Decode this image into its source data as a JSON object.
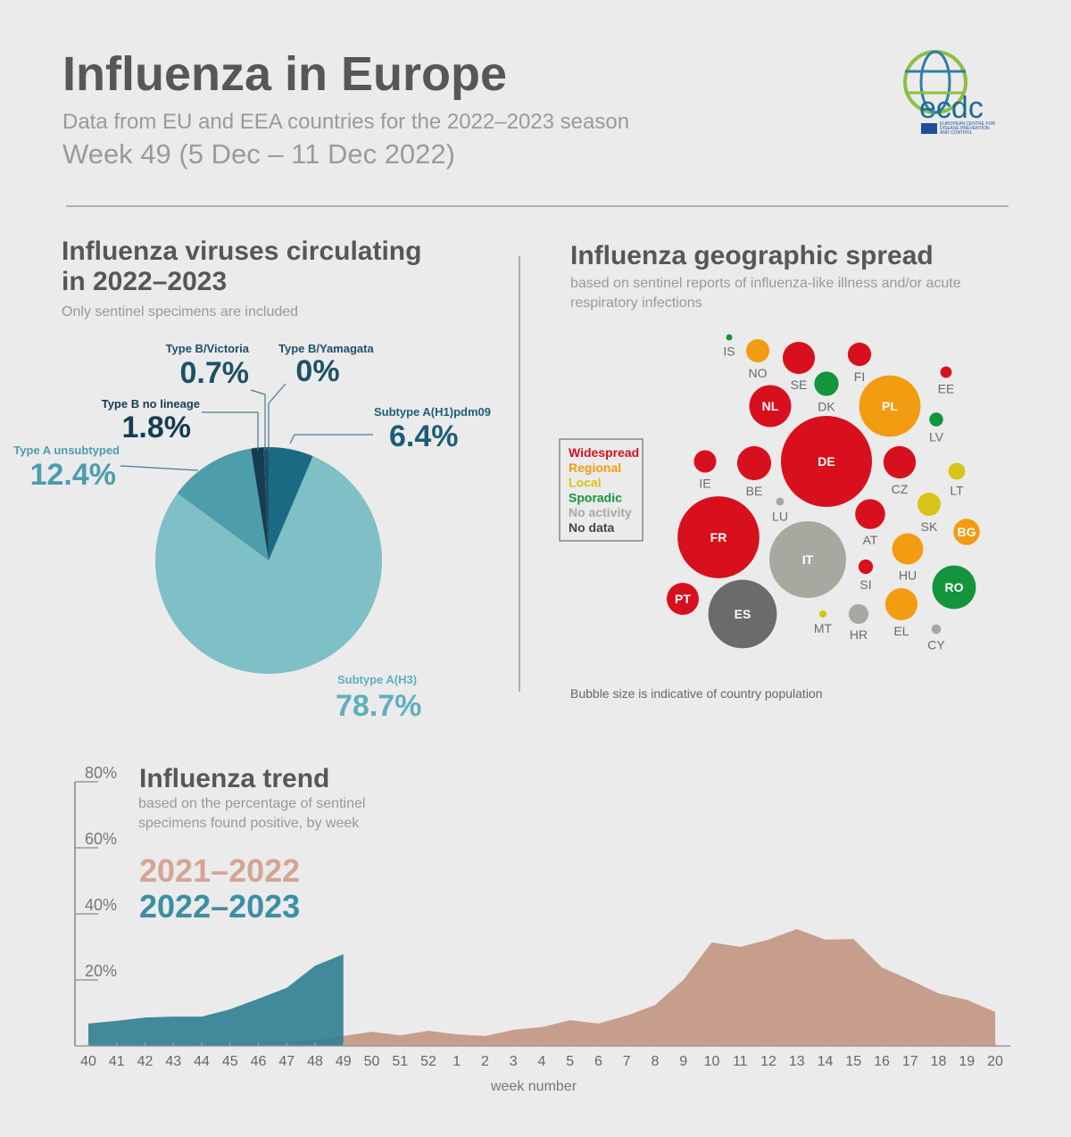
{
  "header": {
    "title": "Influenza in Europe",
    "subtitle": "Data from EU and EEA countries for the 2022–2023 season",
    "week": "Week 49 (5 Dec – 11 Dec 2022)",
    "logo": "ecdc",
    "logo_caption": "EUROPEAN CENTRE FOR DISEASE PREVENTION AND CONTROL"
  },
  "chart_data": [
    {
      "type": "pie",
      "title": "Influenza viruses circulating in 2022–2023",
      "subtitle": "Only sentinel specimens are included",
      "categories": [
        "Subtype A(H1)pdm09",
        "Subtype A(H3)",
        "Type A unsubtyped",
        "Type B no lineage",
        "Type B/Victoria",
        "Type B/Yamagata"
      ],
      "values": [
        6.4,
        78.7,
        12.4,
        1.8,
        0.7,
        0
      ],
      "value_labels": [
        "6.4%",
        "78.7%",
        "12.4%",
        "1.8%",
        "0.7%",
        "0%"
      ],
      "colors": [
        "#1b6a84",
        "#7fbfc6",
        "#4d9dab",
        "#163c52",
        "#1d5068",
        "#2a6d86"
      ]
    },
    {
      "type": "bubble",
      "title": "Influenza geographic spread",
      "subtitle": "based on sentinel reports of influenza-like illness and/or acute respiratory infections",
      "note": "Bubble size is indicative of country population",
      "levels": [
        {
          "name": "Widespread",
          "color": "#d8101e"
        },
        {
          "name": "Regional",
          "color": "#f29c11"
        },
        {
          "name": "Local",
          "color": "#d6c418"
        },
        {
          "name": "Sporadic",
          "color": "#14943c"
        },
        {
          "name": "No activity",
          "color": "#a8a8a0"
        },
        {
          "name": "No data",
          "color": "#6b6b6b"
        }
      ],
      "categories": [
        "IS",
        "NO",
        "SE",
        "FI",
        "DK",
        "EE",
        "NL",
        "PL",
        "LV",
        "DE",
        "IE",
        "BE",
        "CZ",
        "LT",
        "LU",
        "SK",
        "AT",
        "BG",
        "FR",
        "IT",
        "HU",
        "SI",
        "RO",
        "PT",
        "ES",
        "MT",
        "HR",
        "EL",
        "CY"
      ],
      "level": [
        "Sporadic",
        "Regional",
        "Widespread",
        "Widespread",
        "Sporadic",
        "Widespread",
        "Widespread",
        "Regional",
        "Sporadic",
        "Widespread",
        "Widespread",
        "Widespread",
        "Widespread",
        "Local",
        "No activity",
        "Local",
        "Widespread",
        "Regional",
        "Widespread",
        "No activity",
        "Regional",
        "Widespread",
        "Sporadic",
        "Widespread",
        "No data",
        "Local",
        "No activity",
        "Regional",
        "No activity"
      ],
      "sizes": [
        0.38,
        5.4,
        10.4,
        5.5,
        5.9,
        1.3,
        17.6,
        37.8,
        1.9,
        83,
        5,
        11.6,
        10.5,
        2.8,
        0.64,
        5.4,
        9,
        6.9,
        67,
        59,
        9.7,
        2.1,
        19,
        10.3,
        47,
        0.52,
        3.9,
        10.4,
        0.9
      ]
    },
    {
      "type": "area",
      "title": "Influenza trend",
      "subtitle": "based on the percentage of sentinel specimens found positive, by week",
      "x_label": "week number",
      "categories": [
        40,
        41,
        42,
        43,
        44,
        45,
        46,
        47,
        48,
        49,
        50,
        51,
        52,
        1,
        2,
        3,
        4,
        5,
        6,
        7,
        8,
        9,
        10,
        11,
        12,
        13,
        14,
        15,
        16,
        17,
        18,
        19,
        20
      ],
      "series": [
        {
          "name": "2021–2022",
          "color": "#c49a86",
          "values": [
            0.3,
            0.3,
            0.4,
            0.4,
            0.5,
            0.6,
            0.9,
            1.2,
            1.8,
            3,
            4.3,
            3.2,
            4.6,
            3.5,
            3,
            4.9,
            5.7,
            7.8,
            6.8,
            9.2,
            12.4,
            20,
            31.4,
            30,
            32.2,
            35.4,
            32.2,
            32.4,
            23.8,
            20,
            15.9,
            14,
            10.3
          ]
        },
        {
          "name": "2022–2023",
          "color": "#2e7f94",
          "values": [
            6.8,
            7.6,
            8.6,
            8.9,
            8.9,
            11.1,
            14.3,
            17.6,
            24.3,
            27.8,
            null,
            null,
            null,
            null,
            null,
            null,
            null,
            null,
            null,
            null,
            null,
            null,
            null,
            null,
            null,
            null,
            null,
            null,
            null,
            null,
            null,
            null,
            null
          ]
        }
      ],
      "ylim": [
        0,
        80
      ],
      "yticks": [
        {
          "value": 20,
          "label": "20%"
        },
        {
          "value": 40,
          "label": "40%"
        },
        {
          "value": 60,
          "label": "60%"
        },
        {
          "value": 80,
          "label": "80%"
        }
      ]
    }
  ]
}
